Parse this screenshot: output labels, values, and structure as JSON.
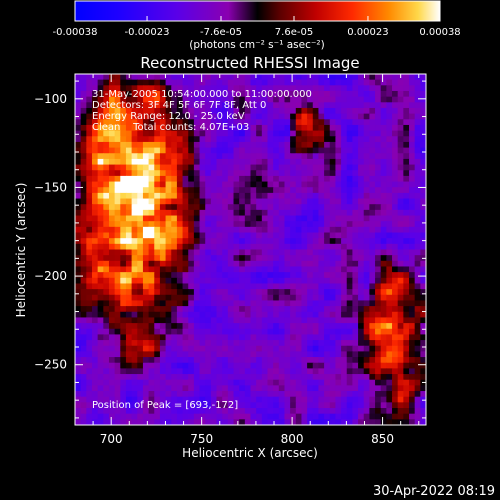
{
  "colorbar": {
    "tick_labels": [
      "-0.00038",
      "-0.00023",
      "-7.6e-05",
      "7.6e-05",
      "0.00023",
      "0.00038"
    ],
    "tick_values": [
      -0.00038,
      -0.00023,
      -7.6e-05,
      7.6e-05,
      0.00023,
      0.00038
    ],
    "range": [
      -0.00038,
      0.00038
    ],
    "unit_label": "(photons cm⁻² s⁻¹ asec⁻²)"
  },
  "plot": {
    "title": "Reconstructed RHESSI Image",
    "xlabel": "Heliocentric X (arcsec)",
    "ylabel": "Heliocentric Y (arcsec)",
    "info_lines": [
      "31-May-2005 10:54:00.000 to 11:00:00.000",
      "Detectors: 3F 4F 5F 6F 7F 8F, Att 0",
      "Energy Range: 12.0 - 25.0 keV",
      "Clean    Total counts: 4.07E+03"
    ],
    "peak_label": "Position of Peak = [693,-172]"
  },
  "footer": {
    "date": "30-Apr-2022 08:19"
  },
  "chart_data": {
    "type": "heatmap",
    "title": "Reconstructed RHESSI Image",
    "xlabel": "Heliocentric X (arcsec)",
    "ylabel": "Heliocentric Y (arcsec)",
    "xlim": [
      680,
      874
    ],
    "ylim": [
      -284,
      -86
    ],
    "x_ticks": [
      700,
      750,
      800,
      850
    ],
    "y_ticks": [
      -100,
      -150,
      -200,
      -250
    ],
    "colorscale_range": [
      -0.00038,
      0.00038
    ],
    "peak_position": [
      693,
      -172
    ],
    "regions": [
      {
        "name": "upper-left bright source",
        "x_range": [
          680,
          745
        ],
        "y_range": [
          -240,
          -86
        ],
        "level": 0.0003
      },
      {
        "name": "right limb source",
        "x_range": [
          840,
          874
        ],
        "y_range": [
          -284,
          -190
        ],
        "level": 0.00015
      },
      {
        "name": "upper-middle compact source",
        "x_range": [
          800,
          818
        ],
        "y_range": [
          -130,
          -105
        ],
        "level": 0.0002
      },
      {
        "name": "background",
        "x_range": [
          680,
          874
        ],
        "y_range": [
          -284,
          -86
        ],
        "level": -0.00012
      }
    ]
  }
}
